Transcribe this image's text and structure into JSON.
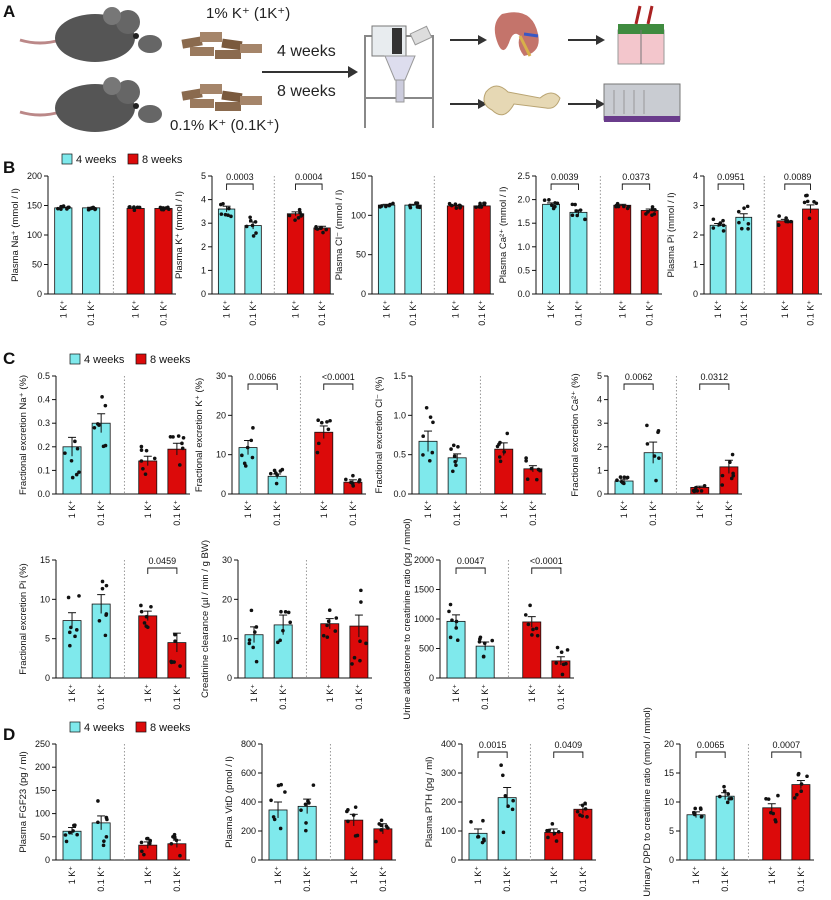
{
  "panels": {
    "A": "A",
    "B": "B",
    "C": "C",
    "D": "D"
  },
  "panel_a": {
    "diet_high": "1% K⁺ (1K⁺)",
    "diet_low": "0.1% K⁺ (0.1K⁺)",
    "duration_1": "4 weeks",
    "duration_2": "8 weeks"
  },
  "colors": {
    "four_weeks": "#7fe9ec",
    "eight_weeks": "#dc0a0a",
    "dots": "#111111"
  },
  "icons": [
    "mouse-icon",
    "chow-icon",
    "arrow-icon",
    "metabolic-cage-icon",
    "kidney-icon",
    "bone-icon",
    "ussing-chamber-icon",
    "analyzer-icon"
  ],
  "chart_data": [
    {
      "type": "bar",
      "id": "B1",
      "ylabel": "Plasma Na⁺ (mmol / l)",
      "ylim": [
        0,
        200
      ],
      "yticks": [
        "0",
        "50",
        "100",
        "150",
        "200"
      ],
      "categories": [
        "1 K⁺",
        "0.1 K⁺",
        "1 K⁺",
        "0.1 K⁺"
      ],
      "values": [
        146,
        146,
        145,
        145
      ],
      "errors": [
        1,
        1,
        1,
        1
      ],
      "legend": [
        "4 weeks",
        "8 weeks"
      ],
      "comparisons": []
    },
    {
      "type": "bar",
      "id": "B2",
      "ylabel": "Plasma K⁺ (mmol / l)",
      "ylim": [
        0,
        5
      ],
      "yticks": [
        "0",
        "1",
        "2",
        "3",
        "4",
        "5"
      ],
      "categories": [
        "1 K⁺",
        "0.1 K⁺",
        "1 K⁺",
        "0.1 K⁺"
      ],
      "values": [
        3.6,
        2.9,
        3.4,
        2.8
      ],
      "errors": [
        0.12,
        0.15,
        0.08,
        0.07
      ],
      "comparisons": [
        {
          "groups": [
            0,
            1
          ],
          "p": "0.0003"
        },
        {
          "groups": [
            2,
            3
          ],
          "p": "0.0004"
        }
      ]
    },
    {
      "type": "bar",
      "id": "B3",
      "ylabel": "Plasma Cl⁻ (mmol / l)",
      "ylim": [
        0,
        150
      ],
      "yticks": [
        "0",
        "50",
        "100",
        "150"
      ],
      "categories": [
        "1 K⁺",
        "0.1 K⁺",
        "1 K⁺",
        "0.1 K⁺"
      ],
      "values": [
        113,
        113,
        112,
        112
      ],
      "errors": [
        1,
        1,
        1,
        1
      ],
      "comparisons": []
    },
    {
      "type": "bar",
      "id": "B4",
      "ylabel": "Plasma Ca²⁺ (mmol / l)",
      "ylim": [
        0,
        2.5
      ],
      "yticks": [
        "0.0",
        "0.5",
        "1.0",
        "1.5",
        "2.0",
        "2.5"
      ],
      "categories": [
        "1 K⁺",
        "0.1 K⁺",
        "1 K⁺",
        "0.1 K⁺"
      ],
      "values": [
        1.9,
        1.73,
        1.88,
        1.77
      ],
      "errors": [
        0.03,
        0.05,
        0.02,
        0.03
      ],
      "comparisons": [
        {
          "groups": [
            0,
            1
          ],
          "p": "0.0039"
        },
        {
          "groups": [
            2,
            3
          ],
          "p": "0.0373"
        }
      ]
    },
    {
      "type": "bar",
      "id": "B5",
      "ylabel": "Plasma Pi (mmol / l)",
      "ylim": [
        0,
        4
      ],
      "yticks": [
        "0",
        "1",
        "2",
        "3",
        "4"
      ],
      "categories": [
        "1 K⁺",
        "0.1 K⁺",
        "1 K⁺",
        "0.1 K⁺"
      ],
      "values": [
        2.33,
        2.6,
        2.48,
        2.88
      ],
      "errors": [
        0.06,
        0.12,
        0.05,
        0.14
      ],
      "comparisons": [
        {
          "groups": [
            0,
            1
          ],
          "p": "0.0951"
        },
        {
          "groups": [
            2,
            3
          ],
          "p": "0.0089"
        }
      ]
    },
    {
      "type": "bar",
      "id": "C1",
      "ylabel": "Fractional excretion Na⁺ (%)",
      "ylim": [
        0,
        0.5
      ],
      "yticks": [
        "0.0",
        "0.1",
        "0.2",
        "0.3",
        "0.4",
        "0.5"
      ],
      "categories": [
        "1 K⁺",
        "0.1 K⁺",
        "1 K⁺",
        "0.1 K⁺"
      ],
      "values": [
        0.2,
        0.3,
        0.14,
        0.19
      ],
      "errors": [
        0.04,
        0.04,
        0.02,
        0.025
      ],
      "legend": [
        "4 weeks",
        "8 weeks"
      ],
      "comparisons": []
    },
    {
      "type": "bar",
      "id": "C2",
      "ylabel": "Fractional excretion K⁺ (%)",
      "ylim": [
        0,
        30
      ],
      "yticks": [
        "0",
        "10",
        "20",
        "30"
      ],
      "categories": [
        "1 K⁺",
        "0.1 K⁺",
        "1 K⁺",
        "0.1 K⁺"
      ],
      "values": [
        11.8,
        4.5,
        15.7,
        3.0
      ],
      "errors": [
        1.8,
        0.6,
        1.6,
        0.6
      ],
      "comparisons": [
        {
          "groups": [
            0,
            1
          ],
          "p": "0.0066"
        },
        {
          "groups": [
            2,
            3
          ],
          "p": "<0.0001"
        }
      ]
    },
    {
      "type": "bar",
      "id": "C3",
      "ylabel": "Fractional excretion Cl⁻ (%)",
      "ylim": [
        0,
        1.5
      ],
      "yticks": [
        "0.0",
        "0.5",
        "1.0",
        "1.5"
      ],
      "categories": [
        "1 K⁺",
        "0.1 K⁺",
        "1 K⁺",
        "0.1 K⁺"
      ],
      "values": [
        0.67,
        0.46,
        0.57,
        0.32
      ],
      "errors": [
        0.13,
        0.05,
        0.08,
        0.04
      ],
      "comparisons": []
    },
    {
      "type": "bar",
      "id": "C4",
      "ylabel": "Fractional excretion Ca²⁺ (%)",
      "ylim": [
        0,
        5
      ],
      "yticks": [
        "0",
        "1",
        "2",
        "3",
        "4",
        "5"
      ],
      "categories": [
        "1 K⁺",
        "0.1 K⁺",
        "1 K⁺",
        "0.1 K⁺"
      ],
      "values": [
        0.55,
        1.75,
        0.28,
        1.15
      ],
      "errors": [
        0.08,
        0.45,
        0.05,
        0.28
      ],
      "comparisons": [
        {
          "groups": [
            0,
            1
          ],
          "p": "0.0062"
        },
        {
          "groups": [
            2,
            3
          ],
          "p": "0.0312"
        }
      ]
    },
    {
      "type": "bar",
      "id": "C5",
      "ylabel": "Fractional excretion Pi (%)",
      "ylim": [
        0,
        15
      ],
      "yticks": [
        "0",
        "5",
        "10",
        "15"
      ],
      "categories": [
        "1 K⁺",
        "0.1 K⁺",
        "1 K⁺",
        "0.1 K⁺"
      ],
      "values": [
        7.3,
        9.4,
        7.9,
        4.5
      ],
      "errors": [
        1.0,
        1.2,
        0.6,
        1.2
      ],
      "comparisons": [
        {
          "groups": [
            2,
            3
          ],
          "p": "0.0459"
        }
      ]
    },
    {
      "type": "bar",
      "id": "C6",
      "ylabel": "Creatinine clearance (µl / min / g BW)",
      "ylim": [
        0,
        30
      ],
      "yticks": [
        "0",
        "10",
        "20",
        "30"
      ],
      "categories": [
        "1 K⁺",
        "0.1 K⁺",
        "1 K⁺",
        "0.1 K⁺"
      ],
      "values": [
        11,
        13.5,
        13.8,
        13.2
      ],
      "errors": [
        2,
        2.5,
        1.3,
        2.8
      ],
      "comparisons": []
    },
    {
      "type": "bar",
      "id": "C7",
      "ylabel": "Urine aldosterone to creatinine ratio (pg / mmol)",
      "ylim": [
        0,
        2000
      ],
      "yticks": [
        "0",
        "500",
        "1000",
        "1500",
        "2000"
      ],
      "categories": [
        "1 K⁺",
        "0.1 K⁺",
        "1 K⁺",
        "0.1 K⁺"
      ],
      "values": [
        960,
        540,
        950,
        290
      ],
      "errors": [
        110,
        70,
        90,
        70
      ],
      "comparisons": [
        {
          "groups": [
            0,
            1
          ],
          "p": "0.0047"
        },
        {
          "groups": [
            2,
            3
          ],
          "p": "<0.0001"
        }
      ]
    },
    {
      "type": "bar",
      "id": "D1",
      "ylabel": "Plasma FGF23 (pg / ml)",
      "ylim": [
        0,
        250
      ],
      "yticks": [
        "0",
        "50",
        "100",
        "150",
        "200",
        "250"
      ],
      "categories": [
        "1 K⁺",
        "0.1 K⁺",
        "1 K⁺",
        "0.1 K⁺"
      ],
      "values": [
        62,
        80,
        32,
        35
      ],
      "errors": [
        8,
        15,
        7,
        8
      ],
      "legend": [
        "4 weeks",
        "8 weeks"
      ],
      "comparisons": []
    },
    {
      "type": "bar",
      "id": "D2",
      "ylabel": "Plasma VitD (pmol / l)",
      "ylim": [
        0,
        800
      ],
      "yticks": [
        "0",
        "200",
        "400",
        "600",
        "800"
      ],
      "categories": [
        "1 K⁺",
        "0.1 K⁺",
        "1 K⁺",
        "0.1 K⁺"
      ],
      "values": [
        345,
        370,
        275,
        215
      ],
      "errors": [
        55,
        50,
        40,
        35
      ],
      "comparisons": []
    },
    {
      "type": "bar",
      "id": "D3",
      "ylabel": "Plasma PTH (pg / ml)",
      "ylim": [
        0,
        400
      ],
      "yticks": [
        "0",
        "100",
        "200",
        "300",
        "400"
      ],
      "categories": [
        "1 K⁺",
        "0.1 K⁺",
        "1 K⁺",
        "0.1 K⁺"
      ],
      "values": [
        92,
        215,
        95,
        175
      ],
      "errors": [
        15,
        35,
        12,
        15
      ],
      "comparisons": [
        {
          "groups": [
            0,
            1
          ],
          "p": "0.0015"
        },
        {
          "groups": [
            2,
            3
          ],
          "p": "0.0409"
        }
      ]
    },
    {
      "type": "bar",
      "id": "D4",
      "ylabel": "Urinary DPD to creatinine ratio (nmol / mmol)",
      "ylim": [
        0,
        20
      ],
      "yticks": [
        "0",
        "5",
        "10",
        "15",
        "20"
      ],
      "categories": [
        "1 K⁺",
        "0.1 K⁺",
        "1 K⁺",
        "0.1 K⁺"
      ],
      "values": [
        7.8,
        11,
        9,
        13
      ],
      "errors": [
        0.5,
        0.6,
        0.7,
        0.7
      ],
      "comparisons": [
        {
          "groups": [
            0,
            1
          ],
          "p": "0.0065"
        },
        {
          "groups": [
            2,
            3
          ],
          "p": "0.0007"
        }
      ]
    }
  ]
}
